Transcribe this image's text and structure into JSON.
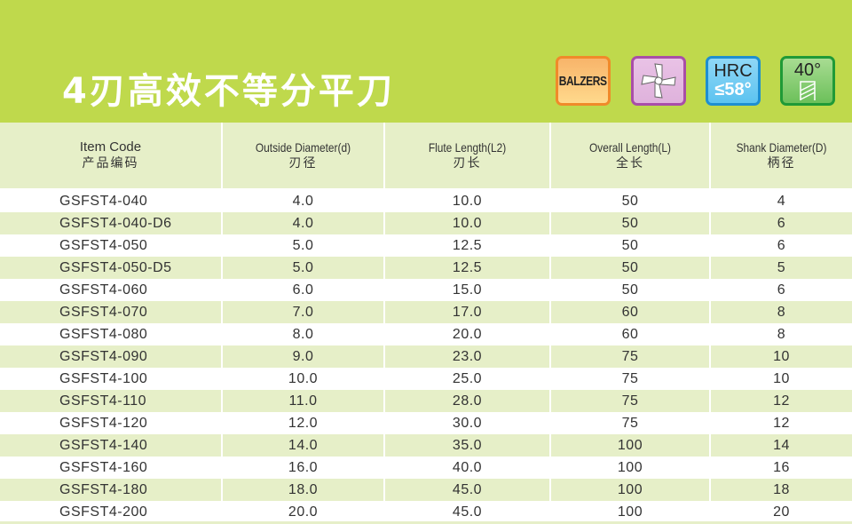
{
  "title": "4刃高效不等分平刀",
  "badges": {
    "coating": "BALZERS",
    "flute_icon": "unequal-4-flute-cross-section-icon",
    "hrc_label": "HRC",
    "hrc_value": "≤58°",
    "helix_angle": "40°",
    "helix_icon": "helix-angle-icon"
  },
  "colors": {
    "banner": "#bfd94c",
    "row_alt": "#e6efc8"
  },
  "table": {
    "headers": [
      {
        "en": "Item Code",
        "zh": "产品编码"
      },
      {
        "en": "Outside Diameter(d)",
        "zh": "刃径"
      },
      {
        "en": "Flute Length(L2)",
        "zh": "刃长"
      },
      {
        "en": "Overall Length(L)",
        "zh": "全长"
      },
      {
        "en": "Shank Diameter(D)",
        "zh": "柄径"
      }
    ],
    "rows": [
      [
        "GSFST4-040",
        "4.0",
        "10.0",
        "50",
        "4"
      ],
      [
        "GSFST4-040-D6",
        "4.0",
        "10.0",
        "50",
        "6"
      ],
      [
        "GSFST4-050",
        "5.0",
        "12.5",
        "50",
        "6"
      ],
      [
        "GSFST4-050-D5",
        "5.0",
        "12.5",
        "50",
        "5"
      ],
      [
        "GSFST4-060",
        "6.0",
        "15.0",
        "50",
        "6"
      ],
      [
        "GSFST4-070",
        "7.0",
        "17.0",
        "60",
        "8"
      ],
      [
        "GSFST4-080",
        "8.0",
        "20.0",
        "60",
        "8"
      ],
      [
        "GSFST4-090",
        "9.0",
        "23.0",
        "75",
        "10"
      ],
      [
        "GSFST4-100",
        "10.0",
        "25.0",
        "75",
        "10"
      ],
      [
        "GSFST4-110",
        "11.0",
        "28.0",
        "75",
        "12"
      ],
      [
        "GSFST4-120",
        "12.0",
        "30.0",
        "75",
        "12"
      ],
      [
        "GSFST4-140",
        "14.0",
        "35.0",
        "100",
        "14"
      ],
      [
        "GSFST4-160",
        "16.0",
        "40.0",
        "100",
        "16"
      ],
      [
        "GSFST4-180",
        "18.0",
        "45.0",
        "100",
        "18"
      ],
      [
        "GSFST4-200",
        "20.0",
        "45.0",
        "100",
        "20"
      ]
    ]
  }
}
